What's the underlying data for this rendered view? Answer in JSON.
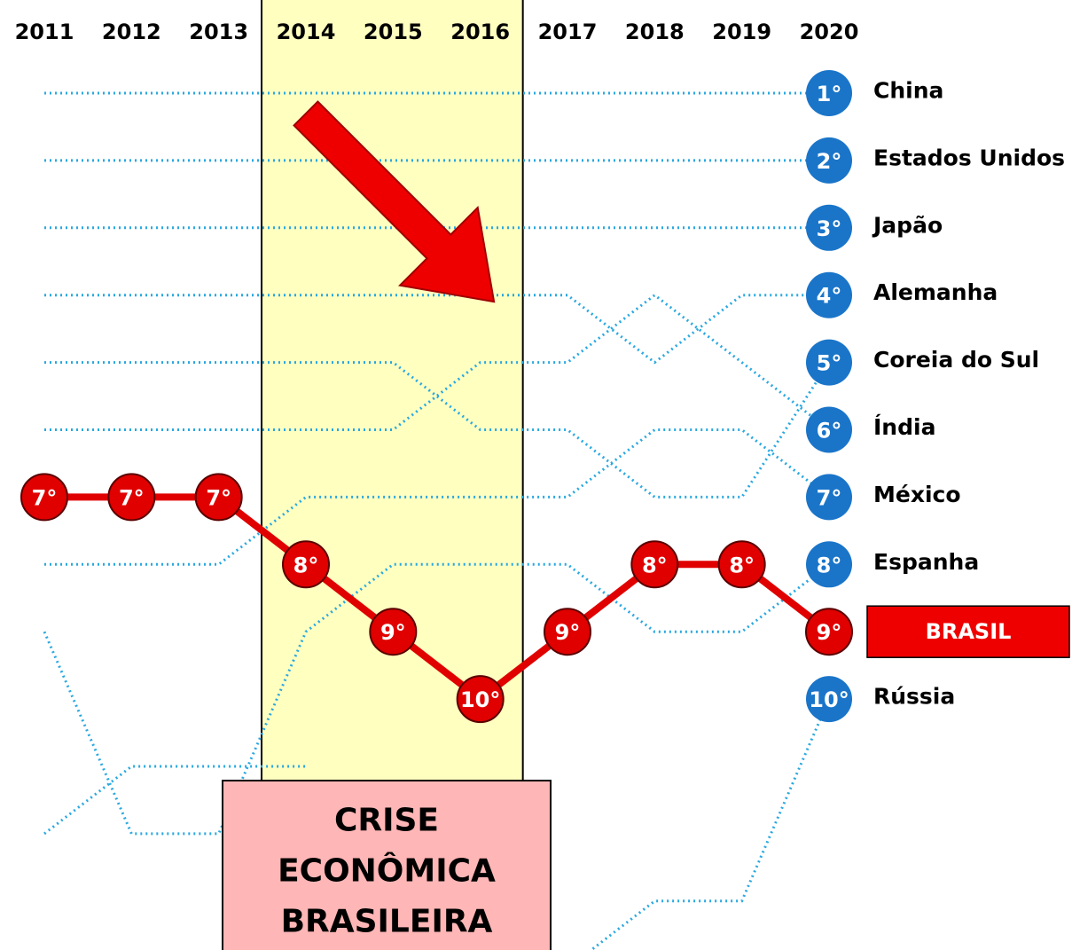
{
  "chart_data": {
    "type": "bump",
    "categories": [
      "2011",
      "2012",
      "2013",
      "2014",
      "2015",
      "2016",
      "2017",
      "2018",
      "2019",
      "2020"
    ],
    "ylim": [
      0.2,
      13.8
    ],
    "series": [
      {
        "name": "China",
        "color": "#29a8e0",
        "values": [
          1,
          1,
          1,
          1,
          1,
          1,
          1,
          1,
          1,
          1
        ],
        "end_label": "1°"
      },
      {
        "name": "Estados Unidos",
        "color": "#29a8e0",
        "values": [
          2,
          2,
          2,
          2,
          2,
          2,
          2,
          2,
          2,
          2
        ],
        "end_label": "2°"
      },
      {
        "name": "Japão",
        "color": "#29a8e0",
        "values": [
          3,
          3,
          3,
          3,
          3,
          3,
          3,
          3,
          3,
          3
        ],
        "end_label": "3°"
      },
      {
        "name": "Alemanha",
        "color": "#29a8e0",
        "values": [
          4,
          4,
          4,
          4,
          4,
          4,
          4,
          5,
          4,
          4
        ],
        "end_label": "4°"
      },
      {
        "name": "Coreia do Sul",
        "color": "#29a8e0",
        "values": [
          5,
          5,
          5,
          5,
          5,
          6,
          6,
          7,
          7,
          5
        ],
        "end_label": "5°"
      },
      {
        "name": "Índia",
        "color": "#29a8e0",
        "values": [
          6,
          6,
          6,
          6,
          6,
          5,
          5,
          4,
          5,
          6
        ],
        "end_label": "6°"
      },
      {
        "name": "México",
        "color": "#29a8e0",
        "values": [
          8,
          8,
          8,
          7,
          7,
          7,
          7,
          6,
          6,
          7
        ],
        "end_label": "7°"
      },
      {
        "name": "Espanha",
        "color": "#29a8e0",
        "values": [
          9,
          12,
          12,
          9,
          8,
          8,
          8,
          9,
          9,
          8
        ],
        "end_label": "8°"
      },
      {
        "name": "Rússia",
        "color": "#29a8e0",
        "values": [
          12,
          11,
          11,
          11,
          null,
          null,
          14,
          13,
          13,
          10
        ],
        "end_label": "10°"
      },
      {
        "name": "BRASIL",
        "color": "#e00000",
        "highlight": true,
        "values": [
          7,
          7,
          7,
          8,
          9,
          10,
          9,
          8,
          8,
          9
        ],
        "value_labels": [
          "7°",
          "7°",
          "7°",
          "8°",
          "9°",
          "10°",
          "9°",
          "8°",
          "8°",
          "9°"
        ]
      }
    ],
    "period": {
      "from": "2014",
      "to": "2016",
      "label": [
        "CRISE",
        "ECONÔMICA",
        "BRASILEIRA"
      ]
    }
  }
}
